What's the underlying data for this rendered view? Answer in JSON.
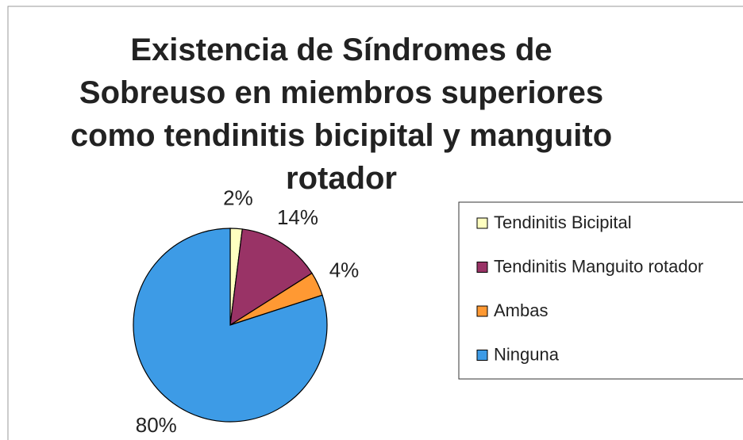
{
  "chart_data": {
    "type": "pie",
    "title": "Existencia de Síndromes de Sobreuso en miembros superiores como tendinitis bicipital y manguito rotador",
    "categories": [
      "Tendinitis Bicipital",
      "Tendinitis Manguito rotador",
      "Ambas",
      "Ninguna"
    ],
    "values": [
      2,
      14,
      4,
      80
    ],
    "value_labels": [
      "2%",
      "14%",
      "4%",
      "80%"
    ],
    "colors": [
      "#ffffc0",
      "#993366",
      "#ff9933",
      "#3d9be6"
    ],
    "legend": "right"
  }
}
